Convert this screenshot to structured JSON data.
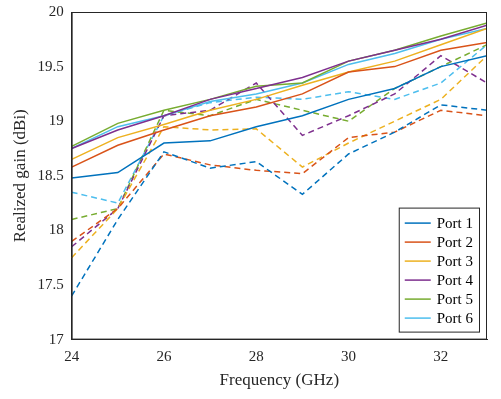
{
  "chart_data": {
    "type": "line",
    "x_label": "Frequency (GHz)",
    "y_label": "Realized gain (dBi)",
    "x": [
      24,
      25,
      26,
      27,
      28,
      29,
      30,
      31,
      32,
      33
    ],
    "xlim": [
      24,
      33
    ],
    "xticks": [
      24,
      26,
      28,
      30,
      32
    ],
    "ylim": [
      17,
      20
    ],
    "yticks": [
      17,
      17.5,
      18,
      18.5,
      19,
      19.5,
      20
    ],
    "grid": false,
    "legend": "lower right",
    "series": [
      {
        "name": "Port 1",
        "color": "#0072bd",
        "line_style": "solid",
        "values": [
          18.48,
          18.53,
          18.8,
          18.82,
          18.95,
          19.05,
          19.2,
          19.3,
          19.5,
          19.6
        ]
      },
      {
        "name": "Port 2",
        "color": "#d95319",
        "line_style": "solid",
        "values": [
          18.58,
          18.78,
          18.92,
          19.05,
          19.13,
          19.25,
          19.45,
          19.5,
          19.65,
          19.72
        ]
      },
      {
        "name": "Port 3",
        "color": "#edb120",
        "line_style": "solid",
        "values": [
          18.65,
          18.85,
          18.97,
          19.1,
          19.2,
          19.33,
          19.45,
          19.55,
          19.7,
          19.85
        ]
      },
      {
        "name": "Port 4",
        "color": "#7e2f8e",
        "line_style": "solid",
        "values": [
          18.75,
          18.92,
          19.05,
          19.2,
          19.3,
          19.4,
          19.55,
          19.65,
          19.75,
          19.88
        ]
      },
      {
        "name": "Port 5",
        "color": "#77ac30",
        "line_style": "solid",
        "values": [
          18.77,
          18.98,
          19.1,
          19.2,
          19.32,
          19.35,
          19.55,
          19.65,
          19.78,
          19.9
        ]
      },
      {
        "name": "Port 6",
        "color": "#4dbeee",
        "line_style": "solid",
        "values": [
          18.75,
          18.95,
          19.05,
          19.18,
          19.25,
          19.35,
          19.52,
          19.62,
          19.75,
          19.85
        ]
      },
      {
        "color": "#0072bd",
        "line_style": "dashed",
        "values": [
          17.4,
          18.1,
          18.72,
          18.57,
          18.63,
          18.33,
          18.7,
          18.9,
          19.15,
          19.1
        ]
      },
      {
        "color": "#d95319",
        "line_style": "dashed",
        "values": [
          17.9,
          18.2,
          18.7,
          18.6,
          18.55,
          18.52,
          18.85,
          18.9,
          19.1,
          19.05
        ]
      },
      {
        "color": "#edb120",
        "line_style": "dashed",
        "values": [
          17.75,
          18.2,
          18.95,
          18.92,
          18.93,
          18.58,
          18.8,
          19.0,
          19.2,
          19.6
        ]
      },
      {
        "color": "#7e2f8e",
        "line_style": "dashed",
        "values": [
          17.85,
          18.2,
          19.05,
          19.1,
          19.35,
          18.87,
          19.05,
          19.25,
          19.6,
          19.35
        ]
      },
      {
        "color": "#77ac30",
        "line_style": "dashed",
        "values": [
          18.1,
          18.2,
          19.1,
          19.05,
          19.2,
          19.1,
          19.0,
          19.3,
          19.5,
          19.7
        ]
      },
      {
        "color": "#4dbeee",
        "line_style": "dashed",
        "values": [
          18.35,
          18.25,
          19.05,
          19.17,
          19.22,
          19.2,
          19.27,
          19.2,
          19.35,
          19.7
        ]
      }
    ]
  }
}
